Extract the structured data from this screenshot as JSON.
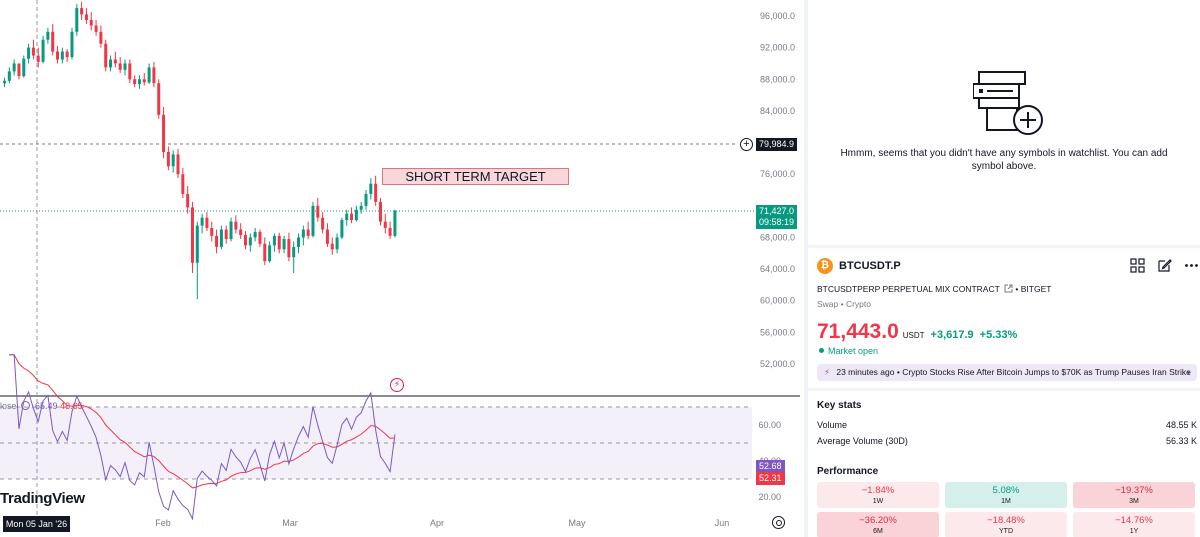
{
  "chart": {
    "price_axis_labels": [
      "96,000.0",
      "92,000.0",
      "88,000.0",
      "84,000.0",
      "76,000.0",
      "68,000.0",
      "64,000.0",
      "60,000.0",
      "56,000.0",
      "52,000.0"
    ],
    "rsi_axis_labels": [
      "60.00",
      "40.00",
      "20.00"
    ],
    "time_labels": [
      "Feb",
      "Mar",
      "Apr",
      "May",
      "Jun"
    ],
    "level_price": "79,984.9",
    "last_price": "71,427.0",
    "countdown": "09:58:19",
    "target_label": "SHORT TERM TARGET",
    "rsi_legend_prefix": "lose",
    "rsi_value_1": "65.49",
    "rsi_value_2": "48.65",
    "rsi_tag_1": "52.68",
    "rsi_tag_2": "52.31",
    "logo_text": "TradingView",
    "crosshair_date": "Mon 05 Jan '26",
    "colors": {
      "up": "#089981",
      "down": "#f23645",
      "rsi": "#7e57c2",
      "rsi_ma": "#f23645"
    }
  },
  "chart_data": {
    "type": "candlestick",
    "ylim": [
      48000,
      98000
    ],
    "candles": [
      [
        87500,
        88200,
        87000,
        87800
      ],
      [
        87800,
        89500,
        87500,
        89000
      ],
      [
        89000,
        90500,
        88500,
        90000
      ],
      [
        90000,
        89800,
        88000,
        88400
      ],
      [
        88400,
        91000,
        88200,
        90600
      ],
      [
        90600,
        92500,
        90000,
        92000
      ],
      [
        92000,
        93000,
        90500,
        91000
      ],
      [
        91000,
        92000,
        89500,
        90200
      ],
      [
        90200,
        93500,
        90000,
        93000
      ],
      [
        93000,
        94500,
        92500,
        94000
      ],
      [
        94000,
        95000,
        91000,
        91500
      ],
      [
        91500,
        92200,
        90000,
        90500
      ],
      [
        90500,
        92000,
        90000,
        91500
      ],
      [
        91500,
        91800,
        90200,
        90800
      ],
      [
        90800,
        94500,
        90500,
        94000
      ],
      [
        94000,
        97500,
        93500,
        97000
      ],
      [
        97000,
        97800,
        95500,
        96200
      ],
      [
        96200,
        97000,
        95000,
        95500
      ],
      [
        95500,
        96500,
        94200,
        94800
      ],
      [
        94800,
        95500,
        93500,
        94000
      ],
      [
        94000,
        94800,
        92000,
        92500
      ],
      [
        92500,
        93000,
        89000,
        89500
      ],
      [
        89500,
        91000,
        89000,
        90500
      ],
      [
        90500,
        91500,
        89500,
        90000
      ],
      [
        90000,
        90800,
        88800,
        89200
      ],
      [
        89200,
        90500,
        88500,
        90000
      ],
      [
        90000,
        90500,
        87500,
        88000
      ],
      [
        88000,
        88500,
        87000,
        87400
      ],
      [
        87400,
        88500,
        86800,
        88000
      ],
      [
        88000,
        88800,
        87200,
        87600
      ],
      [
        87600,
        90000,
        87400,
        89500
      ],
      [
        89500,
        90200,
        87000,
        87500
      ],
      [
        87500,
        88000,
        83000,
        83500
      ],
      [
        83500,
        84500,
        78000,
        78800
      ],
      [
        78800,
        79500,
        76500,
        77000
      ],
      [
        77000,
        79000,
        76200,
        78500
      ],
      [
        78500,
        79200,
        75500,
        76000
      ],
      [
        76000,
        76800,
        73000,
        73500
      ],
      [
        73500,
        74500,
        71000,
        71800
      ],
      [
        71800,
        72500,
        63500,
        64800
      ],
      [
        64800,
        70000,
        60200,
        69500
      ],
      [
        69500,
        71000,
        68500,
        70500
      ],
      [
        70500,
        71200,
        68800,
        69200
      ],
      [
        69200,
        70000,
        67500,
        68200
      ],
      [
        68200,
        69000,
        66000,
        66800
      ],
      [
        66800,
        69500,
        66500,
        69000
      ],
      [
        69000,
        69500,
        67200,
        67800
      ],
      [
        67800,
        70500,
        67500,
        70000
      ],
      [
        70000,
        70800,
        68500,
        69000
      ],
      [
        69000,
        69800,
        67800,
        68300
      ],
      [
        68300,
        68800,
        66500,
        67000
      ],
      [
        67000,
        68500,
        66200,
        68000
      ],
      [
        68000,
        69200,
        67500,
        68700
      ],
      [
        68700,
        69000,
        66800,
        67200
      ],
      [
        67200,
        68000,
        64500,
        65000
      ],
      [
        65000,
        67500,
        64800,
        67000
      ],
      [
        67000,
        68500,
        66200,
        68200
      ],
      [
        68200,
        68600,
        66000,
        66500
      ],
      [
        66500,
        68200,
        66000,
        67800
      ],
      [
        67800,
        68600,
        65000,
        65500
      ],
      [
        65500,
        67500,
        63500,
        66800
      ],
      [
        66800,
        68500,
        66000,
        68000
      ],
      [
        68000,
        69500,
        67000,
        69000
      ],
      [
        69000,
        70000,
        67800,
        68200
      ],
      [
        68200,
        72500,
        68000,
        72000
      ],
      [
        72000,
        73000,
        70000,
        70500
      ],
      [
        70500,
        71200,
        68500,
        69000
      ],
      [
        69000,
        69800,
        66800,
        67200
      ],
      [
        67200,
        68000,
        65800,
        66500
      ],
      [
        66500,
        68500,
        66000,
        68000
      ],
      [
        68000,
        70500,
        67800,
        70200
      ],
      [
        70200,
        71500,
        69500,
        71000
      ],
      [
        71000,
        71800,
        69800,
        70200
      ],
      [
        70200,
        72000,
        70000,
        71500
      ],
      [
        71500,
        72500,
        71000,
        72000
      ],
      [
        72000,
        74000,
        71500,
        73500
      ],
      [
        73500,
        75500,
        72800,
        74800
      ],
      [
        74800,
        75800,
        72000,
        72500
      ],
      [
        72500,
        73000,
        69500,
        70000
      ],
      [
        70000,
        71000,
        68500,
        69200
      ],
      [
        69200,
        70000,
        67800,
        68200
      ],
      [
        68200,
        71500,
        68000,
        71400
      ]
    ]
  },
  "watchlist": {
    "empty_message": "Hmmm, seems that you didn't have any symbols in watchlist. You can add symbol above."
  },
  "symbol": {
    "icon_glyph": "₿",
    "ticker": "BTCUSDT.P",
    "contract": "BTCUSDTPERP PERPETUAL MIX CONTRACT",
    "exchange": "BITGET",
    "type": "Swap • Crypto",
    "price": "71,443.0",
    "currency": "USDT",
    "change": "+3,617.9",
    "change_pct": "+5.33%",
    "market_status": "Market open",
    "news_time": "23 minutes ago",
    "news_headline": "Crypto Stocks Rise After Bitcoin Jumps to $70K as Trump Pauses Iran Strike",
    "icons": [
      "grid-icon",
      "edit-icon",
      "more-icon",
      "external-link-icon",
      "bolt-icon",
      "chevron-right-icon"
    ]
  },
  "key_stats": {
    "title": "Key stats",
    "rows": [
      {
        "label": "Volume",
        "value": "48.55 K"
      },
      {
        "label": "Average Volume (30D)",
        "value": "56.33 K"
      }
    ]
  },
  "performance": {
    "title": "Performance",
    "cells": [
      {
        "value": "−1.84%",
        "label": "1W",
        "tone": "neg"
      },
      {
        "value": "5.08%",
        "label": "1M",
        "tone": "pos"
      },
      {
        "value": "−19.37%",
        "label": "3M",
        "tone": "neg-strong"
      },
      {
        "value": "−36.20%",
        "label": "6M",
        "tone": "neg-strong"
      },
      {
        "value": "−18.48%",
        "label": "YTD",
        "tone": "neg"
      },
      {
        "value": "−14.76%",
        "label": "1Y",
        "tone": "neg"
      }
    ]
  }
}
